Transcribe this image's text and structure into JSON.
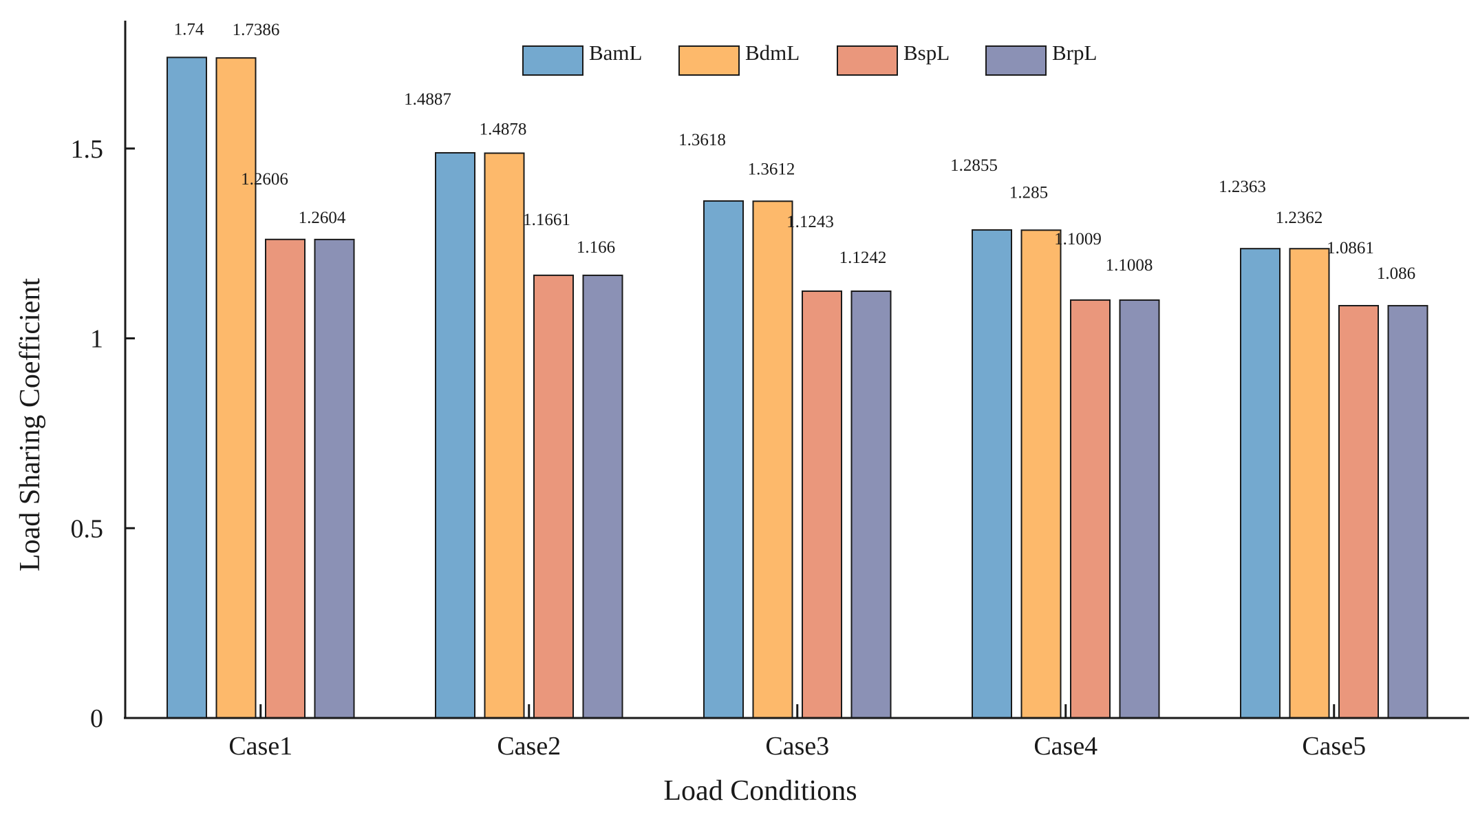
{
  "chart_data": {
    "type": "bar",
    "title": "",
    "xlabel": "Load Conditions",
    "ylabel": "Load Sharing Coefficient",
    "ylim": [
      0,
      1.8
    ],
    "yticks": [
      0,
      0.5,
      1,
      1.5
    ],
    "ytick_labels": [
      "0",
      "0.5",
      "1",
      "1.5"
    ],
    "categories": [
      "Case1",
      "Case2",
      "Case3",
      "Case4",
      "Case5"
    ],
    "legend_position": "top",
    "series": [
      {
        "name": "BamL",
        "color": "#74A9CF",
        "values": [
          1.74,
          1.4887,
          1.3618,
          1.2855,
          1.2363
        ],
        "labels": [
          "1.74",
          "1.4887",
          "1.3618",
          "1.2855",
          "1.2363"
        ]
      },
      {
        "name": "BdmL",
        "color": "#FDB96B",
        "values": [
          1.7386,
          1.4878,
          1.3612,
          1.285,
          1.2362
        ],
        "labels": [
          "1.7386",
          "1.4878",
          "1.3612",
          "1.285",
          "1.2362"
        ]
      },
      {
        "name": "BspL",
        "color": "#EA977C",
        "values": [
          1.2606,
          1.1661,
          1.1243,
          1.1009,
          1.0861
        ],
        "labels": [
          "1.2606",
          "1.1661",
          "1.1243",
          "1.1009",
          "1.0861"
        ]
      },
      {
        "name": "BrpL",
        "color": "#8B91B5",
        "values": [
          1.2604,
          1.166,
          1.1242,
          1.1008,
          1.086
        ],
        "labels": [
          "1.2604",
          "1.166",
          "1.1242",
          "1.1008",
          "1.086"
        ]
      }
    ]
  }
}
